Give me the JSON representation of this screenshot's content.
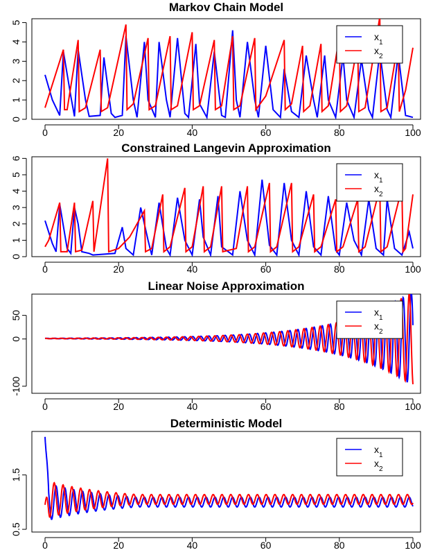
{
  "chart_data": [
    {
      "type": "line",
      "title": "Markov Chain Model",
      "xlim": [
        0,
        100
      ],
      "ylim": [
        0,
        5.2
      ],
      "xticks": [
        "0",
        "20",
        "40",
        "60",
        "80",
        "100"
      ],
      "yticks": [
        "0",
        "1",
        "2",
        "3",
        "4",
        "5"
      ],
      "legend_position": "top-right",
      "series": [
        {
          "name": "x1",
          "color": "#0000ff",
          "x": [
            0,
            2,
            4,
            5,
            7,
            8,
            9,
            11,
            12,
            15,
            16,
            18,
            19,
            21,
            22,
            24,
            25,
            27,
            28,
            30,
            31,
            33,
            34,
            36,
            38,
            39,
            41,
            42,
            44,
            46,
            48,
            49,
            51,
            52,
            53,
            55,
            57,
            58,
            60,
            62,
            64,
            65,
            67,
            69,
            71,
            73,
            74,
            76,
            77,
            79,
            81,
            82,
            84,
            86,
            88,
            89,
            91,
            93,
            94,
            96,
            98,
            100
          ],
          "y": [
            2.3,
            1.0,
            0.2,
            3.5,
            1.2,
            0.15,
            3.6,
            1.0,
            0.15,
            0.2,
            3.2,
            0.3,
            0.1,
            0.2,
            4.3,
            1.0,
            0.1,
            4.0,
            1.0,
            0.1,
            4.0,
            1.0,
            0.1,
            4.2,
            0.3,
            0.1,
            3.9,
            0.8,
            0.1,
            3.5,
            0.2,
            0.1,
            4.6,
            1.0,
            0.1,
            4.0,
            1.0,
            0.1,
            3.8,
            0.5,
            0.1,
            2.6,
            0.4,
            0.1,
            3.3,
            1.0,
            0.1,
            3.3,
            1.0,
            0.1,
            3.3,
            1.0,
            0.1,
            3.1,
            0.5,
            0.1,
            3.5,
            0.5,
            0.1,
            3.4,
            0.2,
            0.1
          ]
        },
        {
          "name": "x2",
          "color": "#ff0000",
          "x": [
            0,
            1,
            5,
            5.3,
            6,
            9,
            9.3,
            11,
            15,
            15.3,
            17,
            22,
            22.3,
            24,
            28,
            28.3,
            30,
            34,
            34.3,
            36,
            40,
            40.3,
            42,
            46,
            46.3,
            48,
            51,
            51.3,
            53,
            57,
            57.3,
            60,
            65,
            65.3,
            67,
            70,
            70.3,
            72,
            75,
            75.3,
            77,
            80,
            80.3,
            82,
            85,
            85.3,
            87,
            91,
            91.3,
            93,
            96,
            96.3,
            98,
            100
          ],
          "y": [
            0.6,
            1.2,
            3.6,
            0.5,
            0.5,
            4.1,
            0.4,
            0.6,
            3.6,
            0.4,
            0.6,
            4.9,
            0.5,
            0.8,
            4.2,
            0.5,
            0.7,
            4.3,
            0.5,
            0.7,
            4.5,
            0.5,
            0.7,
            4.1,
            0.5,
            0.7,
            4.3,
            0.5,
            0.7,
            4.2,
            0.5,
            1.2,
            4.1,
            0.5,
            0.8,
            3.8,
            0.4,
            0.7,
            3.9,
            0.4,
            0.7,
            4.3,
            0.4,
            0.7,
            3.9,
            0.4,
            0.6,
            5.3,
            0.4,
            0.6,
            4.0,
            0.4,
            1.5,
            3.7
          ]
        }
      ]
    },
    {
      "type": "line",
      "title": "Constrained Langevin Approximation",
      "xlim": [
        0,
        100
      ],
      "ylim": [
        0,
        6.1
      ],
      "xticks": [
        "0",
        "20",
        "40",
        "60",
        "80",
        "100"
      ],
      "yticks": [
        "0",
        "1",
        "2",
        "3",
        "4",
        "5",
        "6"
      ],
      "legend_position": "top-right",
      "series": [
        {
          "name": "x1",
          "color": "#0000ff",
          "x": [
            0,
            2,
            3,
            4,
            6,
            7,
            8,
            9,
            10,
            12,
            13,
            19,
            21,
            22,
            24,
            26,
            28,
            29,
            31,
            33,
            34,
            36,
            38,
            40,
            42,
            43,
            45,
            47,
            48,
            51,
            53,
            55,
            57,
            59,
            61,
            63,
            65,
            67,
            69,
            71,
            73,
            75,
            77,
            79,
            80,
            82,
            84,
            86,
            88,
            90,
            92,
            93,
            95,
            97,
            99,
            100
          ],
          "y": [
            2.2,
            0.8,
            0.3,
            3.2,
            0.5,
            0.2,
            3.0,
            2.0,
            0.3,
            0.2,
            0.1,
            0.2,
            1.8,
            0.5,
            0.1,
            3.0,
            1.0,
            0.1,
            3.3,
            0.5,
            0.1,
            3.6,
            1.0,
            0.1,
            3.5,
            1.2,
            0.1,
            3.7,
            0.6,
            0.1,
            4.0,
            1.0,
            0.1,
            4.7,
            0.7,
            0.1,
            4.5,
            1.0,
            0.1,
            4.0,
            0.6,
            0.1,
            3.7,
            0.4,
            0.1,
            3.3,
            1.0,
            0.1,
            3.5,
            0.5,
            0.1,
            3.5,
            0.5,
            0.1,
            1.5,
            0.5
          ]
        },
        {
          "name": "x2",
          "color": "#ff0000",
          "x": [
            0,
            1,
            4,
            4.3,
            6,
            8,
            8.3,
            10,
            13,
            13.3,
            17,
            17.3,
            20,
            23,
            27,
            27.3,
            29,
            32,
            32.3,
            34,
            38,
            38.3,
            40,
            43,
            43.3,
            45,
            48,
            48.3,
            52,
            55,
            55.3,
            57,
            61,
            61.3,
            63,
            67,
            67.3,
            69,
            73,
            73.3,
            75,
            79,
            79.3,
            81,
            85,
            85.3,
            87,
            91,
            91.3,
            93,
            97,
            97.3,
            98,
            100
          ],
          "y": [
            0.6,
            1.0,
            3.3,
            0.3,
            0.3,
            3.3,
            0.3,
            0.4,
            3.4,
            0.3,
            6.0,
            0.3,
            0.5,
            1.2,
            2.8,
            0.3,
            0.5,
            3.8,
            0.3,
            0.6,
            4.2,
            0.3,
            0.6,
            4.3,
            0.3,
            0.6,
            4.3,
            0.3,
            0.5,
            4.3,
            0.3,
            0.6,
            4.5,
            0.3,
            0.6,
            4.5,
            0.3,
            0.6,
            3.8,
            0.3,
            0.6,
            3.5,
            0.3,
            0.6,
            3.5,
            0.3,
            0.6,
            4.2,
            0.3,
            0.6,
            4.2,
            0.3,
            0.5,
            3.8
          ]
        }
      ]
    },
    {
      "type": "line",
      "title": "Linear Noise Approximation",
      "xlim": [
        0,
        100
      ],
      "ylim": [
        -115,
        95
      ],
      "xticks": [
        "0",
        "20",
        "40",
        "60",
        "80",
        "100"
      ],
      "yticks": [
        "50",
        "0",
        "-100"
      ],
      "legend_position": "top-right",
      "series": [
        {
          "name": "x1",
          "color": "#0000ff",
          "form": "oscillation",
          "period": 2.2,
          "phase": 0.0,
          "mean": 1.0,
          "amplitude_start": 0.5,
          "amplitude_end": 100,
          "growth": "exponential"
        },
        {
          "name": "x2",
          "color": "#ff0000",
          "form": "oscillation",
          "period": 2.2,
          "phase": 1.6,
          "mean": 1.0,
          "amplitude_start": 0.5,
          "amplitude_end": 100,
          "growth": "exponential"
        }
      ]
    },
    {
      "type": "line",
      "title": "Deterministic Model",
      "xlim": [
        0,
        100
      ],
      "ylim": [
        0.45,
        2.3
      ],
      "xticks": [
        "0",
        "20",
        "40",
        "60",
        "80",
        "100"
      ],
      "yticks": [
        "0.5",
        "1.5"
      ],
      "legend_position": "top-right",
      "series": [
        {
          "name": "x1",
          "color": "#0000ff",
          "form": "damped_oscillation",
          "start": 2.2,
          "period": 2.4,
          "phase": 0.0,
          "mean": 1.0,
          "amplitude_start": 0.35,
          "amplitude_end": 0.09
        },
        {
          "name": "x2",
          "color": "#ff0000",
          "form": "damped_oscillation",
          "start": 0.95,
          "period": 2.4,
          "phase": 1.3,
          "mean": 1.05,
          "amplitude_start": 0.35,
          "amplitude_end": 0.09
        }
      ]
    }
  ]
}
